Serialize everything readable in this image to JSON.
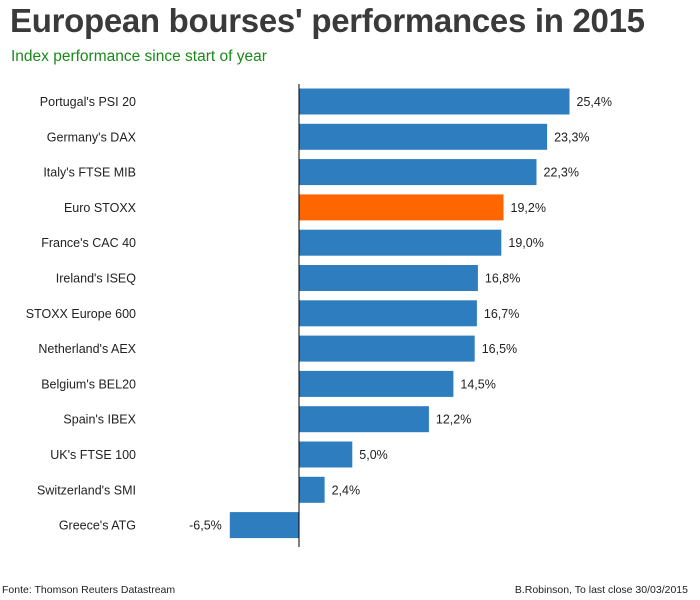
{
  "title": "European bourses' performances in 2015",
  "subtitle": "Index performance since start of year",
  "colors": {
    "bar": "#2e7dbf",
    "highlight": "#ff6600",
    "subtitle": "#1a8a1a",
    "axis": "#000000",
    "text": "#222222"
  },
  "footer": {
    "source": "Fonte: Thomson Reuters Datastream",
    "credit": "B.Robinson, To last close 30/03/2015"
  },
  "chart_data": {
    "type": "bar",
    "orientation": "horizontal",
    "title": "European bourses' performances in 2015",
    "subtitle": "Index performance since start of year",
    "xlabel": "",
    "ylabel": "",
    "unit": "%",
    "decimal_separator": ",",
    "grid": false,
    "categories": [
      "Portugal's PSI 20",
      "Germany's DAX",
      "Italy's FTSE MIB",
      "Euro STOXX",
      "France's CAC 40",
      "Ireland's ISEQ",
      "STOXX Europe 600",
      "Netherland's AEX",
      "Belgium's BEL20",
      "Spain's IBEX",
      "UK's FTSE 100",
      "Switzerland's SMI",
      "Greece's ATG"
    ],
    "values": [
      25.4,
      23.3,
      22.3,
      19.2,
      19.0,
      16.8,
      16.7,
      16.5,
      14.5,
      12.2,
      5.0,
      2.4,
      -6.5
    ],
    "value_labels": [
      "25,4%",
      "23,3%",
      "22,3%",
      "19,2%",
      "19,0%",
      "16,8%",
      "16,7%",
      "16,5%",
      "14,5%",
      "12,2%",
      "5,0%",
      "2,4%",
      "-6,5%"
    ],
    "highlight_index": 3
  }
}
